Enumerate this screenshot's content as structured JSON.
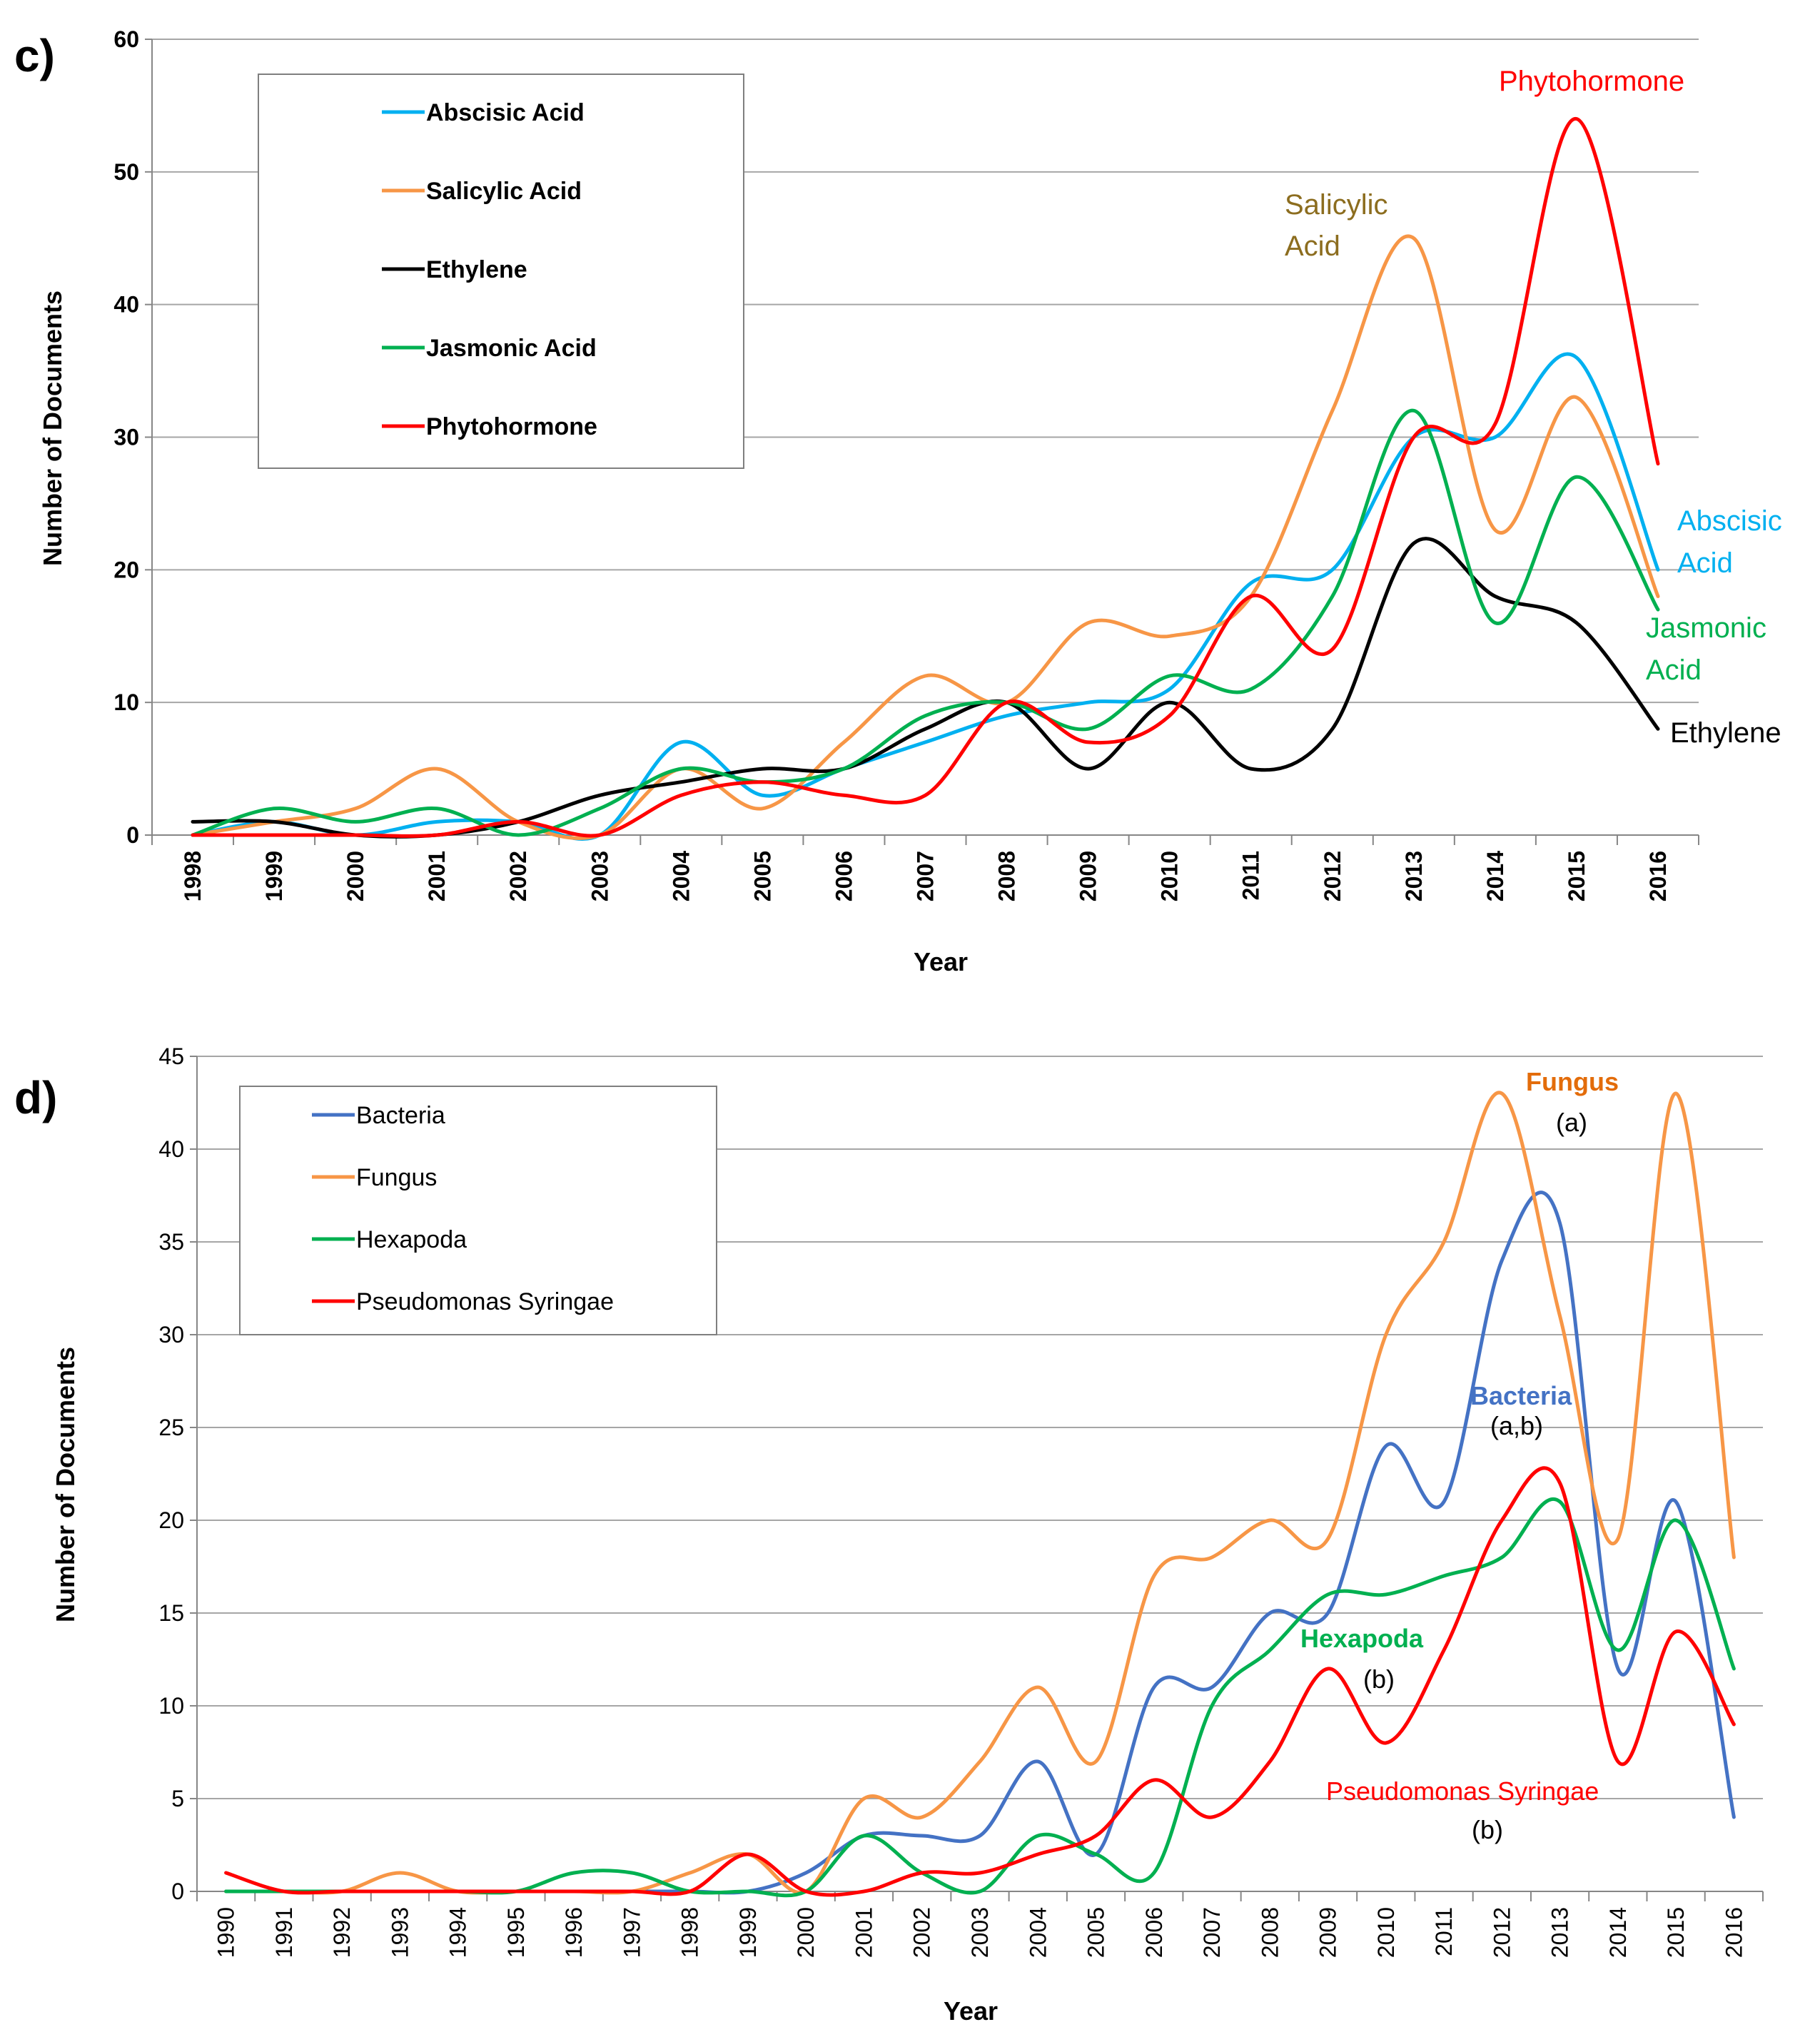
{
  "chart_data": [
    {
      "type": "line",
      "panel_label": "c)",
      "title": "",
      "xlabel": "Year",
      "ylabel": "Number of Documents",
      "ylim": [
        0,
        60
      ],
      "yticks": [
        0,
        10,
        20,
        30,
        40,
        50,
        60
      ],
      "grid": true,
      "legend_position": "top-left",
      "categories": [
        "1998",
        "1999",
        "2000",
        "2001",
        "2002",
        "2003",
        "2004",
        "2005",
        "2006",
        "2007",
        "2008",
        "2009",
        "2010",
        "2011",
        "2012",
        "2013",
        "2014",
        "2015",
        "2016"
      ],
      "series": [
        {
          "name": "Abscisic Acid",
          "color": "#00b0f0",
          "values": [
            0,
            1,
            0,
            1,
            1,
            0,
            7,
            3,
            5,
            7,
            9,
            10,
            11,
            19,
            20,
            30,
            30,
            36,
            20
          ]
        },
        {
          "name": "Salicylic Acid",
          "color": "#f79646",
          "values": [
            0,
            1,
            2,
            5,
            1,
            0,
            5,
            2,
            7,
            12,
            10,
            16,
            15,
            18,
            32,
            45,
            23,
            33,
            18
          ]
        },
        {
          "name": "Ethylene",
          "color": "#000000",
          "values": [
            1,
            1,
            0,
            0,
            1,
            3,
            4,
            5,
            5,
            8,
            10,
            5,
            10,
            5,
            8,
            22,
            18,
            16,
            8
          ]
        },
        {
          "name": "Jasmonic Acid",
          "color": "#00b050",
          "values": [
            0,
            2,
            1,
            2,
            0,
            2,
            5,
            4,
            5,
            9,
            10,
            8,
            12,
            11,
            18,
            32,
            16,
            27,
            17
          ]
        },
        {
          "name": "Phytohormone",
          "color": "#ff0000",
          "values": [
            0,
            0,
            0,
            0,
            1,
            0,
            3,
            4,
            3,
            3,
            10,
            7,
            9,
            18,
            14,
            30,
            31,
            54,
            28
          ]
        }
      ],
      "annotations": [
        {
          "text": "Phytohormone",
          "color": "#ff0000"
        },
        {
          "text": "Salicylic",
          "color": "#8c6d1f"
        },
        {
          "text": "Acid",
          "color": "#8c6d1f"
        },
        {
          "text": "Abscisic",
          "color": "#00b0f0"
        },
        {
          "text": "Acid",
          "color": "#00b0f0"
        },
        {
          "text": "Jasmonic",
          "color": "#00b050"
        },
        {
          "text": "Acid",
          "color": "#00b050"
        },
        {
          "text": "Ethylene",
          "color": "#000000"
        }
      ]
    },
    {
      "type": "line",
      "panel_label": "d)",
      "title": "",
      "xlabel": "Year",
      "ylabel": "Number of Documents",
      "ylim": [
        0,
        45
      ],
      "yticks": [
        0,
        5,
        10,
        15,
        20,
        25,
        30,
        35,
        40,
        45
      ],
      "grid": true,
      "legend_position": "top-left",
      "categories": [
        "1990",
        "1991",
        "1992",
        "1993",
        "1994",
        "1995",
        "1996",
        "1997",
        "1998",
        "1999",
        "2000",
        "2001",
        "2002",
        "2003",
        "2004",
        "2005",
        "2006",
        "2007",
        "2008",
        "2009",
        "2010",
        "2011",
        "2012",
        "2013",
        "2014",
        "2015",
        "2016"
      ],
      "series": [
        {
          "name": "Bacteria",
          "color": "#4472c4",
          "values": [
            0,
            0,
            0,
            0,
            0,
            0,
            0,
            0,
            0,
            0,
            1,
            3,
            3,
            3,
            7,
            2,
            11,
            11,
            15,
            15,
            24,
            21,
            34,
            36,
            12,
            21,
            4
          ]
        },
        {
          "name": "Fungus",
          "color": "#f79646",
          "values": [
            0,
            0,
            0,
            1,
            0,
            0,
            0,
            0,
            1,
            2,
            0,
            5,
            4,
            7,
            11,
            7,
            17,
            18,
            20,
            19,
            30,
            35,
            43,
            31,
            19,
            43,
            18
          ]
        },
        {
          "name": "Hexapoda",
          "color": "#00b050",
          "values": [
            0,
            0,
            0,
            0,
            0,
            0,
            1,
            1,
            0,
            0,
            0,
            3,
            1,
            0,
            3,
            2,
            1,
            10,
            13,
            16,
            16,
            17,
            18,
            21,
            13,
            20,
            12
          ]
        },
        {
          "name": "Pseudomonas Syringae",
          "color": "#ff0000",
          "values": [
            1,
            0,
            0,
            0,
            0,
            0,
            0,
            0,
            0,
            2,
            0,
            0,
            1,
            1,
            2,
            3,
            6,
            4,
            7,
            12,
            8,
            13,
            20,
            22,
            7,
            14,
            9
          ]
        }
      ],
      "annotations": [
        {
          "text": "Fungus",
          "color": "#e36c0a"
        },
        {
          "text": "(a)",
          "color": "#000000"
        },
        {
          "text": "Bacteria",
          "color": "#4472c4"
        },
        {
          "text": "(a,b)",
          "color": "#000000"
        },
        {
          "text": "Hexapoda",
          "color": "#00b050"
        },
        {
          "text": "(b)",
          "color": "#000000"
        },
        {
          "text": "Pseudomonas Syringae",
          "color": "#ff0000"
        },
        {
          "text": "(b)",
          "color": "#000000"
        }
      ]
    }
  ]
}
